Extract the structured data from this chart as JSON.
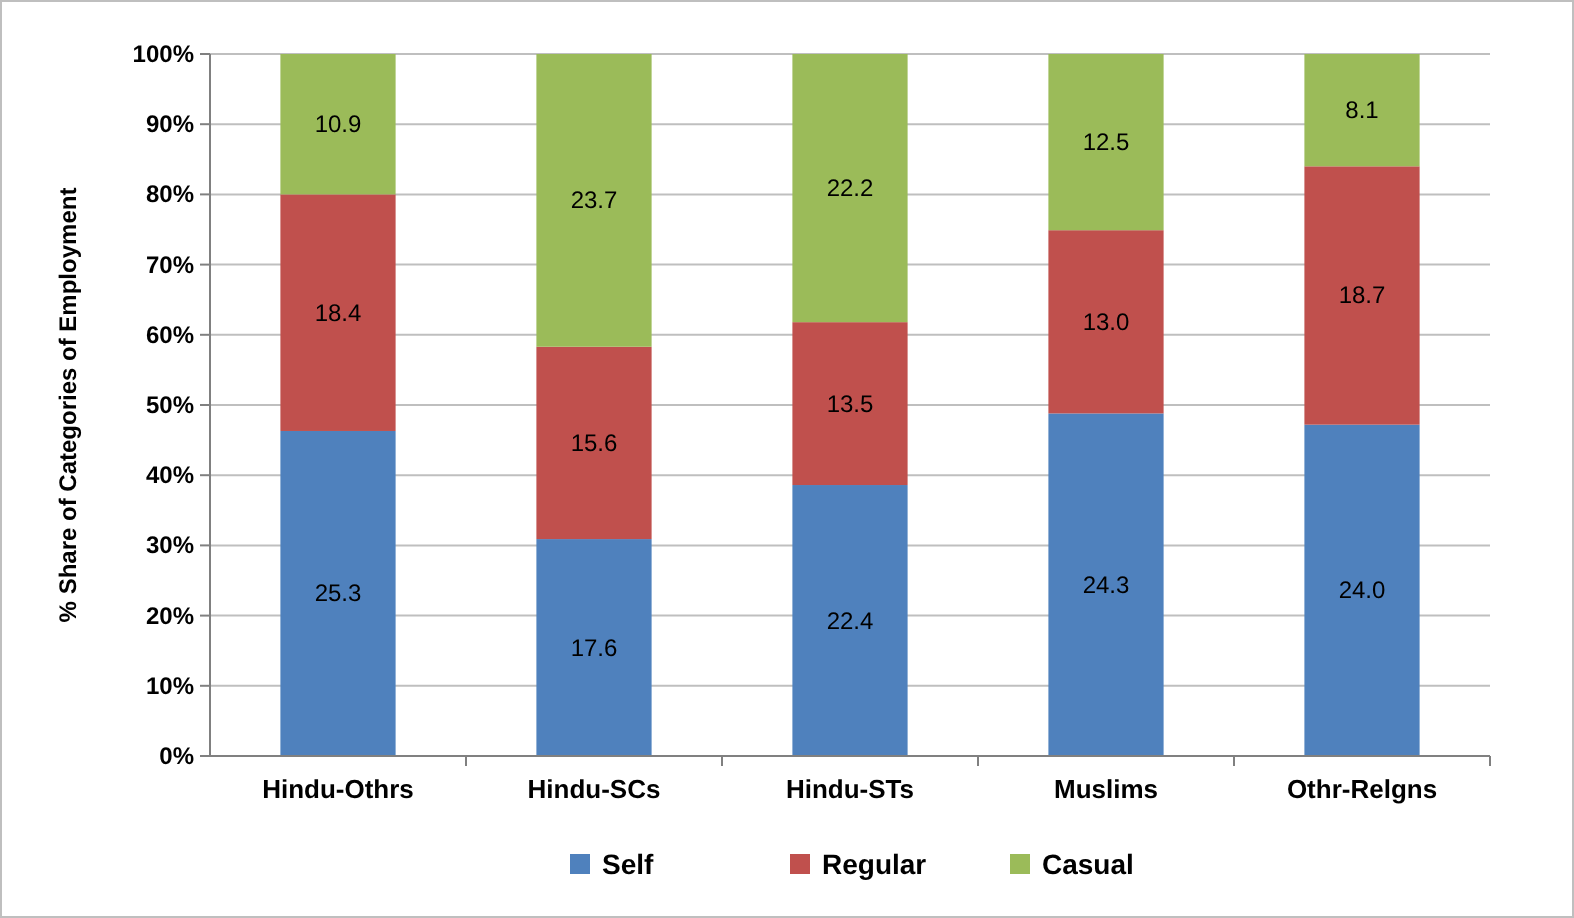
{
  "chart_data": {
    "type": "bar",
    "stacked": true,
    "ylabel": "% Share of Categories of Employment",
    "categories": [
      "Hindu-Othrs",
      "Hindu-SCs",
      "Hindu-STs",
      "Muslims",
      "Othr-Relgns"
    ],
    "series": [
      {
        "name": "Self",
        "color": "#4f81bd",
        "values": [
          46.3,
          30.9,
          38.6,
          48.8,
          47.2
        ]
      },
      {
        "name": "Regular",
        "color": "#c0504d",
        "values": [
          33.7,
          27.4,
          23.2,
          26.1,
          36.8
        ]
      },
      {
        "name": "Casual",
        "color": "#9bbb59",
        "values": [
          20.0,
          41.7,
          38.2,
          25.1,
          16.0
        ]
      }
    ],
    "annotations": [
      "25.3",
      "17.6",
      "22.4",
      "24.3",
      "24.0",
      "18.4",
      "15.6",
      "13.5",
      "13.0",
      "18.7",
      "10.9",
      "23.7",
      "22.2",
      "12.5",
      "8.1"
    ],
    "ylim": [
      0,
      100
    ],
    "yticks": [
      {
        "value": 0,
        "label": "0%"
      },
      {
        "value": 10,
        "label": "10%"
      },
      {
        "value": 20,
        "label": "20%"
      },
      {
        "value": 30,
        "label": "30%"
      },
      {
        "value": 40,
        "label": "40%"
      },
      {
        "value": 50,
        "label": "50%"
      },
      {
        "value": 60,
        "label": "60%"
      },
      {
        "value": 70,
        "label": "70%"
      },
      {
        "value": 80,
        "label": "80%"
      },
      {
        "value": 90,
        "label": "90%"
      },
      {
        "value": 100,
        "label": "100%"
      }
    ],
    "grid": "y",
    "legend": "bottom"
  }
}
